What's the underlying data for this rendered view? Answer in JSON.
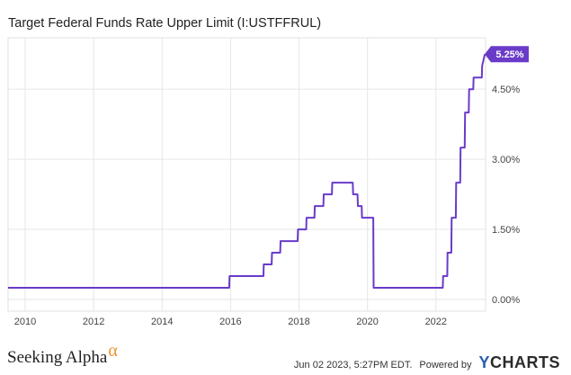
{
  "chart_data": {
    "type": "line",
    "title": "Target Federal Funds Rate Upper Limit (I:USTFFRUL)",
    "x_ticks": [
      "2010",
      "2012",
      "2014",
      "2016",
      "2018",
      "2020",
      "2022"
    ],
    "y_ticks": [
      "0.00%",
      "1.50%",
      "3.00%",
      "4.50%"
    ],
    "ylim": [
      -0.25,
      5.6
    ],
    "xlim": [
      2009.5,
      2023.45
    ],
    "grid": true,
    "line_color": "#6a3bc9",
    "last_value_label": "5.25%",
    "series": [
      {
        "x": [
          2009.5,
          2015.96,
          2015.97,
          2016.96,
          2016.97,
          2017.2,
          2017.21,
          2017.45,
          2017.46,
          2017.96,
          2017.97,
          2018.21,
          2018.22,
          2018.45,
          2018.46,
          2018.71,
          2018.72,
          2018.96,
          2018.97,
          2019.57,
          2019.58,
          2019.71,
          2019.72,
          2019.83,
          2019.84,
          2020.17,
          2020.18,
          2022.2,
          2022.21,
          2022.33,
          2022.34,
          2022.45,
          2022.46,
          2022.58,
          2022.59,
          2022.71,
          2022.72,
          2022.84,
          2022.85,
          2022.96,
          2022.97,
          2023.09,
          2023.1,
          2023.34,
          2023.35,
          2023.43
        ],
        "values": [
          0.25,
          0.25,
          0.5,
          0.5,
          0.75,
          0.75,
          1.0,
          1.0,
          1.25,
          1.25,
          1.5,
          1.5,
          1.75,
          1.75,
          2.0,
          2.0,
          2.25,
          2.25,
          2.5,
          2.5,
          2.25,
          2.25,
          2.0,
          2.0,
          1.75,
          1.75,
          0.25,
          0.25,
          0.5,
          0.5,
          1.0,
          1.0,
          1.75,
          1.75,
          2.5,
          2.5,
          3.25,
          3.25,
          4.0,
          4.0,
          4.5,
          4.5,
          4.75,
          4.75,
          5.0,
          5.25
        ]
      }
    ]
  },
  "footer": {
    "brand": "Seeking Alpha",
    "brand_glyph": "α",
    "timestamp": "Jun 02 2023, 5:27PM EDT.",
    "powered_by": "Powered by",
    "ycharts_y": "Y",
    "ycharts_rest": "CHARTS"
  }
}
